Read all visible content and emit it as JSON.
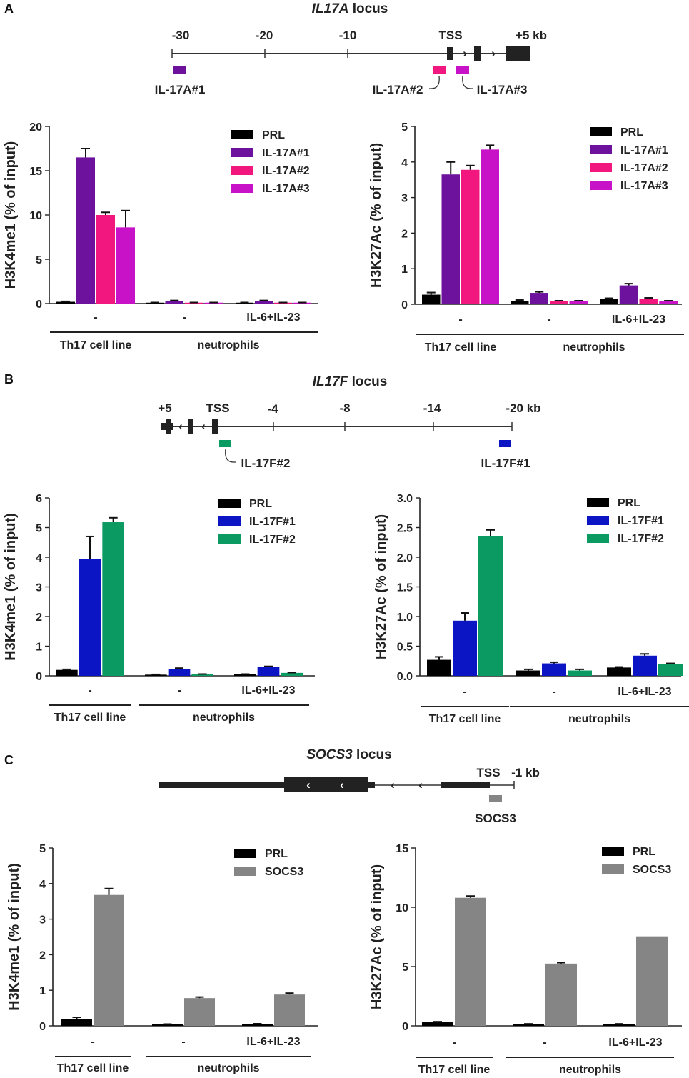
{
  "colors": {
    "PRL": "#000000",
    "IL-17A#1": "#6c129c",
    "IL-17A#2": "#f2177e",
    "IL-17A#3": "#c812c8",
    "IL-17F#1": "#0b15c4",
    "IL-17F#2": "#0c9a63",
    "SOCS3": "#858585"
  },
  "panels": [
    {
      "letter": "A",
      "locus": {
        "gene": "IL17A",
        "suffix": " locus",
        "ticks": [
          "-30",
          "-20",
          "-10",
          "TSS",
          "+5 kb"
        ],
        "probes": [
          "IL-17A#1",
          "IL-17A#2",
          "IL-17A#3"
        ]
      }
    },
    {
      "letter": "B",
      "locus": {
        "gene": "IL17F",
        "suffix": " locus",
        "ticks": [
          "+5",
          "TSS",
          "-4",
          "-8",
          "-14",
          "-20 kb"
        ],
        "probes": [
          "IL-17F#2",
          "IL-17F#1"
        ]
      }
    },
    {
      "letter": "C",
      "locus": {
        "gene": "SOCS3",
        "suffix": " locus",
        "ticks": [
          "TSS",
          "-1 kb"
        ],
        "probes": [
          "SOCS3"
        ]
      }
    }
  ],
  "chart_data": [
    {
      "type": "bar",
      "panel": "A",
      "title": "",
      "ylabel": "H3K4me1 (% of input)",
      "ylim": [
        0,
        20
      ],
      "yticks": [
        "0",
        "5",
        "10",
        "15",
        "20"
      ],
      "categories": [
        "-",
        "-",
        "IL-6+IL-23"
      ],
      "groups": [
        {
          "label": "Th17 cell line",
          "span": [
            0,
            0
          ]
        },
        {
          "label": "neutrophils",
          "span": [
            1,
            2
          ]
        }
      ],
      "series": [
        {
          "name": "PRL",
          "values": [
            0.2,
            0.1,
            0.1
          ],
          "errors": [
            0.05,
            0.02,
            0.02
          ]
        },
        {
          "name": "IL-17A#1",
          "values": [
            16.5,
            0.3,
            0.3
          ],
          "errors": [
            1.0,
            0.05,
            0.05
          ]
        },
        {
          "name": "IL-17A#2",
          "values": [
            10.0,
            0.1,
            0.1
          ],
          "errors": [
            0.3,
            0.02,
            0.02
          ]
        },
        {
          "name": "IL-17A#3",
          "values": [
            8.6,
            0.1,
            0.1
          ],
          "errors": [
            1.9,
            0.02,
            0.02
          ]
        }
      ]
    },
    {
      "type": "bar",
      "panel": "A",
      "title": "",
      "ylabel": "H3K27Ac (% of input)",
      "ylim": [
        0,
        5
      ],
      "yticks": [
        "0",
        "1",
        "2",
        "3",
        "4",
        "5"
      ],
      "categories": [
        "-",
        "-",
        "IL-6+IL-23"
      ],
      "groups": [
        {
          "label": "Th17 cell line",
          "span": [
            0,
            0
          ]
        },
        {
          "label": "neutrophils",
          "span": [
            1,
            2
          ]
        }
      ],
      "series": [
        {
          "name": "PRL",
          "values": [
            0.27,
            0.1,
            0.15
          ],
          "errors": [
            0.06,
            0.02,
            0.02
          ]
        },
        {
          "name": "IL-17A#1",
          "values": [
            3.65,
            0.32,
            0.53
          ],
          "errors": [
            0.35,
            0.03,
            0.05
          ]
        },
        {
          "name": "IL-17A#2",
          "values": [
            3.78,
            0.08,
            0.16
          ],
          "errors": [
            0.12,
            0.02,
            0.02
          ]
        },
        {
          "name": "IL-17A#3",
          "values": [
            4.35,
            0.08,
            0.08
          ],
          "errors": [
            0.12,
            0.02,
            0.02
          ]
        }
      ]
    },
    {
      "type": "bar",
      "panel": "B",
      "title": "",
      "ylabel": "H3K4me1 (% of input)",
      "ylim": [
        0,
        6
      ],
      "yticks": [
        "0",
        "1",
        "2",
        "3",
        "4",
        "5",
        "6"
      ],
      "categories": [
        "-",
        "-",
        "IL-6+IL-23"
      ],
      "groups": [
        {
          "label": "Th17 cell line",
          "span": [
            0,
            0
          ]
        },
        {
          "label": "neutrophils",
          "span": [
            1,
            2
          ]
        }
      ],
      "series": [
        {
          "name": "PRL",
          "values": [
            0.2,
            0.04,
            0.05
          ],
          "errors": [
            0.02,
            0.01,
            0.01
          ]
        },
        {
          "name": "IL-17F#1",
          "values": [
            3.95,
            0.24,
            0.3
          ],
          "errors": [
            0.75,
            0.02,
            0.02
          ]
        },
        {
          "name": "IL-17F#2",
          "values": [
            5.18,
            0.05,
            0.1
          ],
          "errors": [
            0.15,
            0.01,
            0.01
          ]
        }
      ]
    },
    {
      "type": "bar",
      "panel": "B",
      "title": "",
      "ylabel": "H3K27Ac (% of input)",
      "ylim": [
        0,
        3.0
      ],
      "yticks": [
        "0.0",
        "0.5",
        "1.0",
        "1.5",
        "2.0",
        "2.5",
        "3.0"
      ],
      "categories": [
        "-",
        "-",
        "IL-6+IL-23"
      ],
      "groups": [
        {
          "label": "Th17 cell line",
          "span": [
            0,
            0
          ]
        },
        {
          "label": "neutrophils",
          "span": [
            1,
            2
          ]
        }
      ],
      "series": [
        {
          "name": "PRL",
          "values": [
            0.27,
            0.09,
            0.14
          ],
          "errors": [
            0.05,
            0.02,
            0.01
          ]
        },
        {
          "name": "IL-17F#1",
          "values": [
            0.93,
            0.21,
            0.34
          ],
          "errors": [
            0.13,
            0.02,
            0.03
          ]
        },
        {
          "name": "IL-17F#2",
          "values": [
            2.36,
            0.09,
            0.2
          ],
          "errors": [
            0.1,
            0.02,
            0.01
          ]
        }
      ]
    },
    {
      "type": "bar",
      "panel": "C",
      "title": "",
      "ylabel": "H3K4me1 (% of input)",
      "ylim": [
        0,
        5
      ],
      "yticks": [
        "0",
        "1",
        "2",
        "3",
        "4",
        "5"
      ],
      "categories": [
        "-",
        "-",
        "IL-6+IL-23"
      ],
      "groups": [
        {
          "label": "Th17 cell line",
          "span": [
            0,
            0
          ]
        },
        {
          "label": "neutrophils",
          "span": [
            1,
            2
          ]
        }
      ],
      "series": [
        {
          "name": "PRL",
          "values": [
            0.2,
            0.04,
            0.05
          ],
          "errors": [
            0.04,
            0.01,
            0.01
          ]
        },
        {
          "name": "SOCS3",
          "values": [
            3.68,
            0.78,
            0.88
          ],
          "errors": [
            0.18,
            0.03,
            0.04
          ]
        }
      ]
    },
    {
      "type": "bar",
      "panel": "C",
      "title": "",
      "ylabel": "H3K27Ac (% of input)",
      "ylim": [
        0,
        15
      ],
      "yticks": [
        "0",
        "5",
        "10",
        "15"
      ],
      "categories": [
        "-",
        "-",
        "IL-6+IL-23"
      ],
      "groups": [
        {
          "label": "Th17 cell line",
          "span": [
            0,
            0
          ]
        },
        {
          "label": "neutrophils",
          "span": [
            1,
            2
          ]
        }
      ],
      "series": [
        {
          "name": "PRL",
          "values": [
            0.3,
            0.15,
            0.15
          ],
          "errors": [
            0.05,
            0.02,
            0.02
          ]
        },
        {
          "name": "SOCS3",
          "values": [
            10.8,
            5.25,
            7.55
          ],
          "errors": [
            0.15,
            0.08,
            0.0
          ]
        }
      ]
    }
  ]
}
